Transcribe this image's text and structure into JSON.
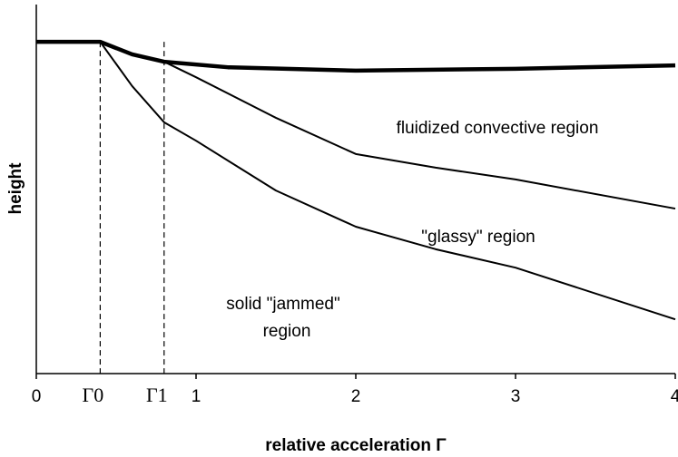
{
  "chart_data": {
    "type": "line",
    "xlabel": "relative acceleration Γ",
    "ylabel": "height",
    "xlim": [
      0,
      4
    ],
    "ylim": [
      0,
      1
    ],
    "xticks": [
      0,
      {
        "value": 0.4,
        "label": "Γ0"
      },
      {
        "value": 0.8,
        "label": "Γ1"
      },
      1,
      2,
      3,
      4
    ],
    "series": [
      {
        "color": "#000000",
        "line_width": 4.5,
        "x": [
          0,
          0.4,
          0.6,
          0.8,
          1.2,
          2,
          3,
          4
        ],
        "values": [
          0.899,
          0.899,
          0.865,
          0.845,
          0.83,
          0.821,
          0.826,
          0.835
        ]
      },
      {
        "color": "#000000",
        "line_width": 2,
        "x": [
          0.8,
          1,
          1.5,
          2,
          2.5,
          3,
          4
        ],
        "values": [
          0.845,
          0.803,
          0.693,
          0.595,
          0.558,
          0.526,
          0.447
        ]
      },
      {
        "color": "#000000",
        "line_width": 2,
        "x": [
          0.4,
          0.6,
          0.8,
          1,
          1.5,
          2,
          2.5,
          3,
          4
        ],
        "values": [
          0.899,
          0.779,
          0.681,
          0.631,
          0.496,
          0.398,
          0.337,
          0.287,
          0.147
        ]
      }
    ],
    "annotations": [
      "fluidized convective region",
      "\"glassy\" region",
      "solid  \"jammed\"",
      "region"
    ]
  }
}
